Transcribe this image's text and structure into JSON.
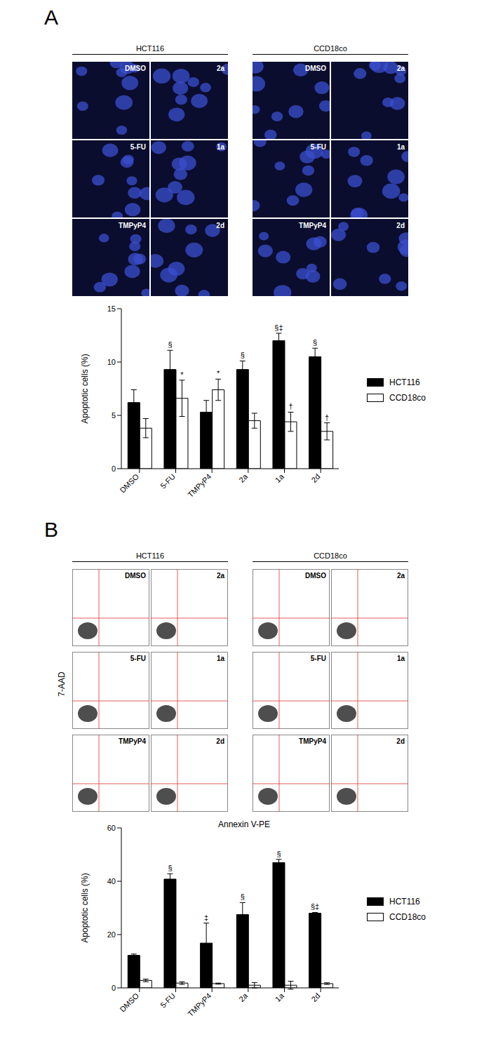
{
  "figure": {
    "panel_a": {
      "label": "A",
      "groups": [
        {
          "title": "HCT116",
          "tiles": [
            [
              "DMSO",
              "2a"
            ],
            [
              "5-FU",
              "1a"
            ],
            [
              "TMPyP4",
              "2d"
            ]
          ]
        },
        {
          "title": "CCD18co",
          "tiles": [
            [
              "DMSO",
              "2a"
            ],
            [
              "5-FU",
              "1a"
            ],
            [
              "TMPyP4",
              "2d"
            ]
          ]
        }
      ]
    },
    "panel_b": {
      "label": "B",
      "x_label": "Annexin V-PE",
      "y_label": "7-AAD",
      "groups": [
        {
          "title": "HCT116",
          "tiles": [
            [
              "DMSO",
              "2a"
            ],
            [
              "5-FU",
              "1a"
            ],
            [
              "TMPyP4",
              "2d"
            ]
          ]
        },
        {
          "title": "CCD18co",
          "tiles": [
            [
              "DMSO",
              "2a"
            ],
            [
              "5-FU",
              "1a"
            ],
            [
              "TMPyP4",
              "2d"
            ]
          ]
        }
      ]
    }
  },
  "chart_data": [
    {
      "type": "bar",
      "y_label": "Apoptotic cells (%)",
      "categories": [
        "DMSO",
        "5-FU",
        "TMPyP4",
        "2a",
        "1a",
        "2d"
      ],
      "series": [
        {
          "name": "HCT116",
          "color": "#000000",
          "values": [
            6.2,
            9.3,
            5.3,
            9.3,
            12.0,
            10.5
          ],
          "errors": [
            1.2,
            1.8,
            1.1,
            0.8,
            0.7,
            0.8
          ],
          "annotations": [
            null,
            "§",
            null,
            "§",
            "§‡",
            "§"
          ]
        },
        {
          "name": "CCD18co",
          "color": "#ffffff",
          "values": [
            3.8,
            6.6,
            7.4,
            4.5,
            4.4,
            3.5
          ],
          "errors": [
            0.9,
            1.7,
            1.0,
            0.7,
            0.9,
            0.8
          ],
          "annotations": [
            null,
            "*",
            "*",
            null,
            "†",
            "†"
          ]
        }
      ],
      "ylim": [
        0,
        15
      ],
      "yticks": [
        0,
        5,
        10,
        15
      ],
      "legend": "right"
    },
    {
      "type": "bar",
      "y_label": "Apoptotic cells (%)",
      "categories": [
        "DMSO",
        "5-FU",
        "TMPyP4",
        "2a",
        "1a",
        "2d"
      ],
      "series": [
        {
          "name": "HCT116",
          "color": "#000000",
          "values": [
            12.2,
            40.8,
            16.8,
            27.5,
            47.0,
            28.0
          ],
          "errors": [
            0.5,
            2.0,
            7.5,
            4.5,
            1.2,
            0.3
          ],
          "annotations": [
            null,
            "§",
            "‡",
            "§",
            "§",
            "§‡"
          ]
        },
        {
          "name": "CCD18co",
          "color": "#ffffff",
          "values": [
            2.8,
            1.8,
            1.6,
            1.0,
            1.0,
            1.6
          ],
          "errors": [
            0.5,
            0.5,
            0.2,
            1.0,
            1.5,
            0.3
          ],
          "annotations": [
            null,
            null,
            null,
            null,
            null,
            null
          ]
        }
      ],
      "ylim": [
        0,
        60
      ],
      "yticks": [
        0,
        20,
        40,
        60
      ],
      "legend": "right"
    }
  ]
}
